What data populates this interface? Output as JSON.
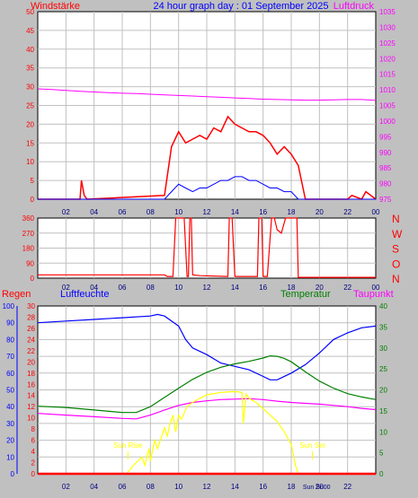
{
  "colors": {
    "red": "#ff0000",
    "blue": "#0000ff",
    "magenta": "#ff00ff",
    "green": "#008000",
    "yellow": "#ffff00",
    "grid": "#c0c0c0"
  },
  "chart_data": [
    {
      "type": "line",
      "name": "wind-pressure",
      "title": "24 hour graph day : 01 September 2025",
      "left_label": "Windstärke",
      "right_label": "Luftdruck",
      "x_ticks": [
        "02",
        "04",
        "06",
        "08",
        "10",
        "12",
        "14",
        "16",
        "18",
        "20",
        "22",
        "00"
      ],
      "x_range": [
        0,
        24
      ],
      "y_left": {
        "range": [
          0,
          50
        ],
        "ticks": [
          "0",
          "5",
          "10",
          "15",
          "20",
          "25",
          "30",
          "35",
          "40",
          "45",
          "50"
        ]
      },
      "y_right": {
        "range": [
          975,
          1035
        ],
        "ticks": [
          "975",
          "980",
          "985",
          "990",
          "995",
          "1000",
          "1005",
          "1010",
          "1015",
          "1020",
          "1025",
          "1030",
          "1035"
        ]
      },
      "series": [
        {
          "role": "pressure",
          "color": "#ff00ff",
          "x": [
            0,
            1,
            2,
            3,
            4,
            5,
            6,
            7,
            8,
            9,
            10,
            11,
            12,
            13,
            14,
            15,
            16,
            17,
            18,
            19,
            20,
            21,
            22,
            23,
            24
          ],
          "values": [
            1010.3,
            1010.1,
            1009.8,
            1009.5,
            1009.3,
            1009.1,
            1008.9,
            1008.8,
            1008.6,
            1008.4,
            1008.2,
            1008.0,
            1007.8,
            1007.6,
            1007.4,
            1007.2,
            1007.0,
            1006.9,
            1006.8,
            1006.7,
            1006.7,
            1006.8,
            1006.9,
            1006.9,
            1006.6
          ]
        },
        {
          "role": "gust",
          "color": "#ff0000",
          "x": [
            0,
            3.0,
            3.1,
            3.3,
            3.5,
            9.0,
            9.5,
            10,
            10.5,
            11,
            11.5,
            12,
            12.5,
            13,
            13.5,
            14,
            14.5,
            15,
            15.5,
            16,
            16.5,
            17,
            17.5,
            18,
            18.5,
            19,
            22,
            22.3,
            23,
            23.3,
            24
          ],
          "values": [
            0,
            0,
            5,
            1,
            0,
            1,
            14,
            18,
            15,
            16,
            17,
            16,
            19,
            18,
            22,
            20,
            19,
            18,
            18,
            17,
            15,
            12,
            14,
            12,
            9,
            0,
            0,
            1,
            0,
            2,
            0
          ]
        },
        {
          "role": "wind",
          "color": "#0000ff",
          "x": [
            0,
            9,
            9.5,
            10,
            10.5,
            11,
            11.5,
            12,
            12.5,
            13,
            13.5,
            14,
            14.5,
            15,
            15.5,
            16,
            16.5,
            17,
            17.5,
            18,
            18.5,
            24
          ],
          "values": [
            0,
            0,
            2,
            4,
            3,
            2,
            3,
            3,
            4,
            5,
            5,
            6,
            6,
            5,
            5,
            4,
            3,
            3,
            2,
            2,
            0,
            0
          ]
        }
      ]
    },
    {
      "type": "line",
      "name": "wind-direction",
      "right_label": [
        "N",
        "W",
        "S",
        "O",
        "N"
      ],
      "x_ticks": [
        "02",
        "04",
        "06",
        "08",
        "10",
        "12",
        "14",
        "16",
        "18",
        "20",
        "22",
        "00"
      ],
      "x_range": [
        0,
        24
      ],
      "y_left": {
        "range": [
          0,
          360
        ],
        "ticks": [
          "0",
          "90",
          "180",
          "270",
          "360"
        ]
      },
      "series": [
        {
          "role": "direction",
          "color": "#ff0000",
          "x": [
            0,
            0.1,
            9,
            9.2,
            9.6,
            9.8,
            10.4,
            10.6,
            10.7,
            10.8,
            10.9,
            11,
            11.5,
            13.5,
            13.6,
            13.8,
            14.0,
            14.2,
            15.6,
            15.7,
            15.9,
            16.0,
            16.3,
            16.6,
            16.8,
            17.0,
            17.3,
            17.6,
            17.8,
            18,
            18.4,
            18.5,
            24
          ],
          "values": [
            20,
            20,
            20,
            10,
            10,
            360,
            360,
            10,
            10,
            360,
            360,
            20,
            15,
            10,
            360,
            360,
            10,
            10,
            10,
            360,
            360,
            10,
            10,
            360,
            360,
            290,
            270,
            360,
            360,
            360,
            360,
            5,
            5
          ]
        }
      ]
    },
    {
      "type": "line",
      "name": "climate",
      "labels": {
        "regen": "Regen",
        "humidity": "Luftfeuchte",
        "temperature": "Temperatur",
        "dewpoint": "Taupunkt"
      },
      "annotations": {
        "sunrise": "Sun Rise",
        "sunset": "Sun Set",
        "sunrise_time": 6.4,
        "sunset_time": 19.5
      },
      "x_ticks": [
        "02",
        "04",
        "06",
        "08",
        "10",
        "12",
        "14",
        "16",
        "18",
        "20",
        "22"
      ],
      "x_overlay": "Sun Sn00",
      "x_range": [
        0,
        24
      ],
      "axis_humidity": {
        "range": [
          0,
          100
        ],
        "ticks": [
          "0",
          "10",
          "20",
          "30",
          "40",
          "50",
          "60",
          "70",
          "80",
          "90",
          "100"
        ]
      },
      "axis_rain": {
        "range": [
          0,
          30
        ],
        "ticks": [
          "0",
          "2",
          "4",
          "6",
          "8",
          "10",
          "12",
          "14",
          "16",
          "18",
          "20",
          "22",
          "24",
          "26",
          "28",
          "30"
        ]
      },
      "axis_temp": {
        "range": [
          0,
          40
        ],
        "ticks": [
          "0",
          "5",
          "10",
          "15",
          "20",
          "25",
          "30",
          "35",
          "40"
        ]
      },
      "series": [
        {
          "role": "humidity",
          "axis": "humidity",
          "color": "#0000ff",
          "x": [
            0,
            2,
            4,
            6,
            8,
            8.5,
            9,
            10,
            10.5,
            11,
            12,
            13,
            14,
            15,
            16,
            16.5,
            17,
            18,
            19,
            20,
            21,
            22,
            23,
            24
          ],
          "values": [
            90,
            91,
            92,
            93,
            94,
            95,
            94,
            88,
            80,
            75,
            71,
            66,
            64,
            62,
            58,
            56,
            56,
            60,
            65,
            72,
            80,
            84,
            87,
            88
          ]
        },
        {
          "role": "temperature",
          "axis": "temp",
          "color": "#008000",
          "x": [
            0,
            2,
            4,
            6,
            7,
            8,
            9,
            10,
            11,
            12,
            13,
            14,
            15,
            16,
            16.5,
            17,
            17.5,
            18,
            19,
            20,
            21,
            22,
            23,
            24
          ],
          "values": [
            16.1,
            15.8,
            15.2,
            14.6,
            14.6,
            16.0,
            18.2,
            20.4,
            22.5,
            24.2,
            25.4,
            26.2,
            26.8,
            27.6,
            28.1,
            28.0,
            27.5,
            26.7,
            24.3,
            22.1,
            20.4,
            19.1,
            18.3,
            17.7
          ]
        },
        {
          "role": "dewpoint",
          "axis": "temp",
          "color": "#ff00ff",
          "x": [
            0,
            2,
            4,
            6,
            7,
            8,
            9,
            10,
            11,
            12,
            13,
            14,
            15,
            16,
            17,
            18,
            19,
            20,
            21,
            22,
            23,
            24
          ],
          "values": [
            14.4,
            14.0,
            13.6,
            13.2,
            13.1,
            14.0,
            15.2,
            16.3,
            17.0,
            17.4,
            17.7,
            17.8,
            17.9,
            17.7,
            17.3,
            17.0,
            16.8,
            16.6,
            16.3,
            16.0,
            15.6,
            15.3
          ]
        },
        {
          "role": "solar",
          "axis": "temp",
          "color": "#ffff00",
          "x": [
            0,
            6.3,
            6.8,
            7.1,
            7.4,
            7.6,
            7.9,
            8.0,
            8.3,
            8.5,
            8.8,
            9.0,
            9.2,
            9.4,
            9.6,
            9.8,
            10.0,
            10.2,
            10.6,
            11.0,
            11.5,
            12,
            13,
            14,
            14.5,
            14.6,
            14.8,
            15.0,
            15.5,
            16,
            16.5,
            17,
            17.5,
            18,
            18.3,
            18.5,
            24
          ],
          "values": [
            0,
            0,
            2,
            3,
            4,
            2,
            6,
            3,
            8,
            6,
            9,
            11,
            9,
            12,
            14,
            10,
            14,
            13,
            16,
            17,
            18,
            18.8,
            19.4,
            19.6,
            19.4,
            12,
            19,
            18,
            17,
            15.5,
            14,
            12.5,
            10,
            7,
            2,
            0,
            0
          ]
        },
        {
          "role": "rain",
          "axis": "rain",
          "color": "#ff0000",
          "x": [
            0,
            24
          ],
          "values": [
            0,
            0
          ]
        }
      ]
    }
  ]
}
